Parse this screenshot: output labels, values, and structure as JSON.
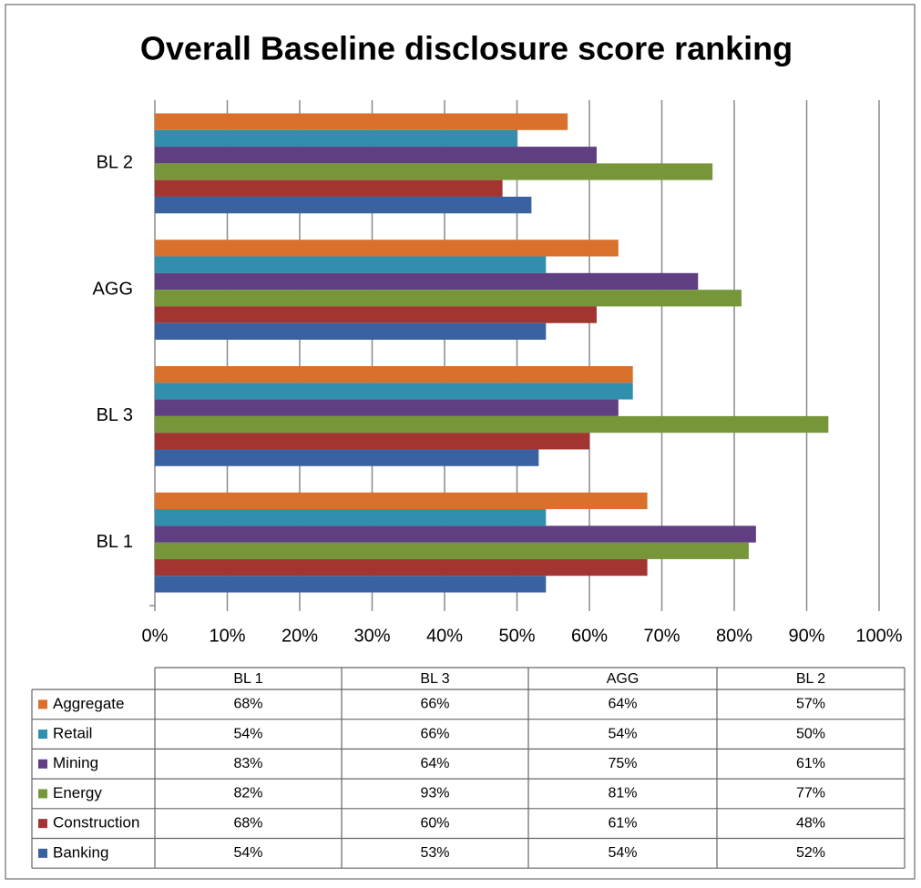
{
  "chart_data": {
    "type": "bar",
    "orientation": "horizontal",
    "title": "Overall Baseline disclosure score ranking",
    "categories": [
      "BL 1",
      "BL 3",
      "AGG",
      "BL 2"
    ],
    "series": [
      {
        "name": "Aggregate",
        "color": "#d9702b",
        "values": [
          68,
          66,
          64,
          57
        ],
        "value_labels": [
          "68%",
          "66%",
          "64%",
          "57%"
        ]
      },
      {
        "name": "Retail",
        "color": "#2f8fad",
        "values": [
          54,
          66,
          54,
          50
        ],
        "value_labels": [
          "54%",
          "66%",
          "54%",
          "50%"
        ]
      },
      {
        "name": "Mining",
        "color": "#5f3f82",
        "values": [
          83,
          64,
          75,
          61
        ],
        "value_labels": [
          "83%",
          "64%",
          "75%",
          "61%"
        ]
      },
      {
        "name": "Energy",
        "color": "#77963a",
        "values": [
          82,
          93,
          81,
          77
        ],
        "value_labels": [
          "82%",
          "93%",
          "81%",
          "77%"
        ]
      },
      {
        "name": "Construction",
        "color": "#a23532",
        "values": [
          68,
          60,
          61,
          48
        ],
        "value_labels": [
          "68%",
          "60%",
          "61%",
          "48%"
        ]
      },
      {
        "name": "Banking",
        "color": "#3a62a0",
        "values": [
          54,
          53,
          54,
          52
        ],
        "value_labels": [
          "54%",
          "53%",
          "54%",
          "52%"
        ]
      }
    ],
    "xlim": [
      0,
      100
    ],
    "xticks": [
      {
        "value": 0,
        "label": "0%"
      },
      {
        "value": 10,
        "label": "10%"
      },
      {
        "value": 20,
        "label": "20%"
      },
      {
        "value": 30,
        "label": "30%"
      },
      {
        "value": 40,
        "label": "40%"
      },
      {
        "value": 50,
        "label": "50%"
      },
      {
        "value": 60,
        "label": "60%"
      },
      {
        "value": 70,
        "label": "70%"
      },
      {
        "value": 80,
        "label": "80%"
      },
      {
        "value": 90,
        "label": "90%"
      },
      {
        "value": 100,
        "label": "100%"
      }
    ],
    "grid": true
  }
}
